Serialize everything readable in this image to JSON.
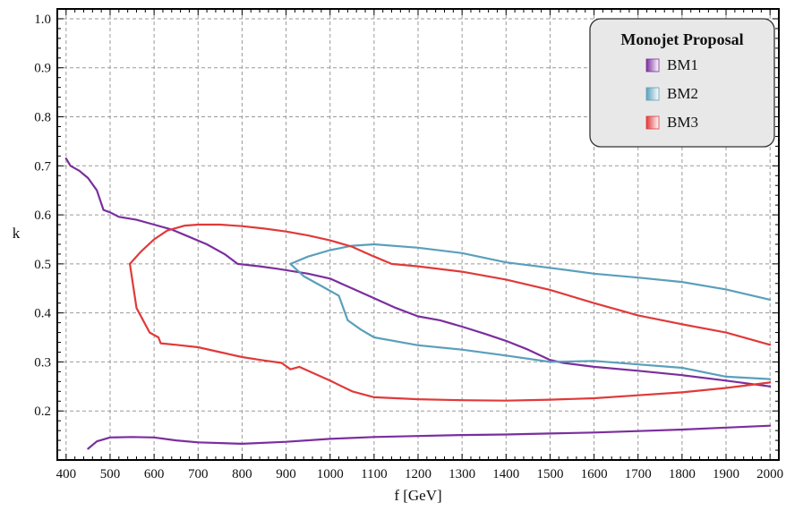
{
  "chart_data": {
    "type": "line",
    "xlabel": "f [GeV]",
    "ylabel": "k",
    "xlim": [
      380,
      2020
    ],
    "ylim": [
      0.1,
      1.02
    ],
    "xticks": [
      400,
      500,
      600,
      700,
      800,
      900,
      1000,
      1100,
      1200,
      1300,
      1400,
      1500,
      1600,
      1700,
      1800,
      1900,
      2000
    ],
    "yticks": [
      0.2,
      0.3,
      0.4,
      0.5,
      0.6,
      0.7,
      0.8,
      0.9,
      1.0
    ],
    "ytick_labels": [
      "0.2",
      "0.3",
      "0.4",
      "0.5",
      "0.6",
      "0.7",
      "0.8",
      "0.9",
      "1.0"
    ],
    "grid": true,
    "legend": {
      "title": "Monojet Proposal",
      "position": "top-right"
    },
    "series": [
      {
        "name": "BM1",
        "color": "#7b2e9e",
        "curves": [
          [
            [
              400,
              0.715
            ],
            [
              410,
              0.7
            ],
            [
              430,
              0.69
            ],
            [
              450,
              0.675
            ],
            [
              470,
              0.65
            ],
            [
              485,
              0.61
            ],
            [
              500,
              0.605
            ],
            [
              520,
              0.596
            ],
            [
              560,
              0.59
            ],
            [
              600,
              0.58
            ],
            [
              640,
              0.57
            ],
            [
              680,
              0.555
            ],
            [
              720,
              0.54
            ],
            [
              760,
              0.52
            ],
            [
              790,
              0.5
            ],
            [
              840,
              0.495
            ],
            [
              880,
              0.49
            ],
            [
              950,
              0.48
            ],
            [
              1000,
              0.47
            ],
            [
              1050,
              0.45
            ],
            [
              1100,
              0.43
            ],
            [
              1150,
              0.41
            ],
            [
              1200,
              0.393
            ],
            [
              1250,
              0.385
            ],
            [
              1300,
              0.372
            ],
            [
              1350,
              0.358
            ],
            [
              1400,
              0.343
            ],
            [
              1450,
              0.325
            ],
            [
              1500,
              0.304
            ],
            [
              1530,
              0.298
            ],
            [
              1600,
              0.29
            ],
            [
              1700,
              0.282
            ],
            [
              1800,
              0.273
            ],
            [
              1900,
              0.262
            ],
            [
              2000,
              0.25
            ]
          ],
          [
            [
              450,
              0.123
            ],
            [
              470,
              0.138
            ],
            [
              500,
              0.146
            ],
            [
              550,
              0.147
            ],
            [
              600,
              0.146
            ],
            [
              650,
              0.14
            ],
            [
              700,
              0.136
            ],
            [
              800,
              0.133
            ],
            [
              900,
              0.137
            ],
            [
              1000,
              0.143
            ],
            [
              1100,
              0.147
            ],
            [
              1200,
              0.149
            ],
            [
              1300,
              0.151
            ],
            [
              1400,
              0.152
            ],
            [
              1500,
              0.154
            ],
            [
              1600,
              0.156
            ],
            [
              1700,
              0.159
            ],
            [
              1800,
              0.162
            ],
            [
              1900,
              0.166
            ],
            [
              2000,
              0.17
            ]
          ]
        ]
      },
      {
        "name": "BM2",
        "color": "#5a9fbb",
        "curves": [
          [
            [
              910,
              0.5
            ],
            [
              950,
              0.515
            ],
            [
              1000,
              0.528
            ],
            [
              1050,
              0.537
            ],
            [
              1100,
              0.54
            ],
            [
              1200,
              0.533
            ],
            [
              1300,
              0.522
            ],
            [
              1400,
              0.503
            ],
            [
              1500,
              0.492
            ],
            [
              1600,
              0.48
            ],
            [
              1700,
              0.472
            ],
            [
              1800,
              0.463
            ],
            [
              1900,
              0.448
            ],
            [
              2000,
              0.427
            ]
          ],
          [
            [
              910,
              0.5
            ],
            [
              940,
              0.475
            ],
            [
              980,
              0.455
            ],
            [
              1000,
              0.445
            ],
            [
              1010,
              0.44
            ],
            [
              1020,
              0.435
            ],
            [
              1030,
              0.41
            ],
            [
              1040,
              0.385
            ],
            [
              1070,
              0.366
            ],
            [
              1100,
              0.35
            ],
            [
              1200,
              0.334
            ],
            [
              1300,
              0.325
            ],
            [
              1400,
              0.313
            ],
            [
              1500,
              0.3
            ],
            [
              1600,
              0.302
            ],
            [
              1700,
              0.295
            ],
            [
              1800,
              0.288
            ],
            [
              1900,
              0.27
            ],
            [
              2000,
              0.265
            ]
          ]
        ]
      },
      {
        "name": "BM3",
        "color": "#e03a3a",
        "curves": [
          [
            [
              545,
              0.5
            ],
            [
              570,
              0.525
            ],
            [
              600,
              0.55
            ],
            [
              630,
              0.568
            ],
            [
              670,
              0.578
            ],
            [
              700,
              0.58
            ],
            [
              750,
              0.58
            ],
            [
              800,
              0.577
            ],
            [
              850,
              0.572
            ],
            [
              900,
              0.566
            ],
            [
              950,
              0.558
            ],
            [
              1000,
              0.548
            ],
            [
              1050,
              0.535
            ],
            [
              1100,
              0.515
            ],
            [
              1140,
              0.5
            ],
            [
              1200,
              0.495
            ],
            [
              1300,
              0.484
            ],
            [
              1400,
              0.468
            ],
            [
              1500,
              0.447
            ],
            [
              1600,
              0.42
            ],
            [
              1700,
              0.395
            ],
            [
              1800,
              0.377
            ],
            [
              1900,
              0.36
            ],
            [
              2000,
              0.335
            ]
          ],
          [
            [
              545,
              0.5
            ],
            [
              560,
              0.41
            ],
            [
              590,
              0.36
            ],
            [
              610,
              0.35
            ],
            [
              615,
              0.338
            ],
            [
              650,
              0.335
            ],
            [
              700,
              0.33
            ],
            [
              750,
              0.32
            ],
            [
              800,
              0.31
            ],
            [
              850,
              0.303
            ],
            [
              890,
              0.298
            ],
            [
              910,
              0.285
            ],
            [
              930,
              0.29
            ],
            [
              960,
              0.278
            ],
            [
              1000,
              0.262
            ],
            [
              1050,
              0.24
            ],
            [
              1100,
              0.228
            ],
            [
              1200,
              0.224
            ],
            [
              1300,
              0.222
            ],
            [
              1400,
              0.221
            ],
            [
              1500,
              0.223
            ],
            [
              1600,
              0.226
            ],
            [
              1700,
              0.232
            ],
            [
              1800,
              0.238
            ],
            [
              1900,
              0.247
            ],
            [
              2000,
              0.258
            ]
          ]
        ]
      }
    ]
  }
}
